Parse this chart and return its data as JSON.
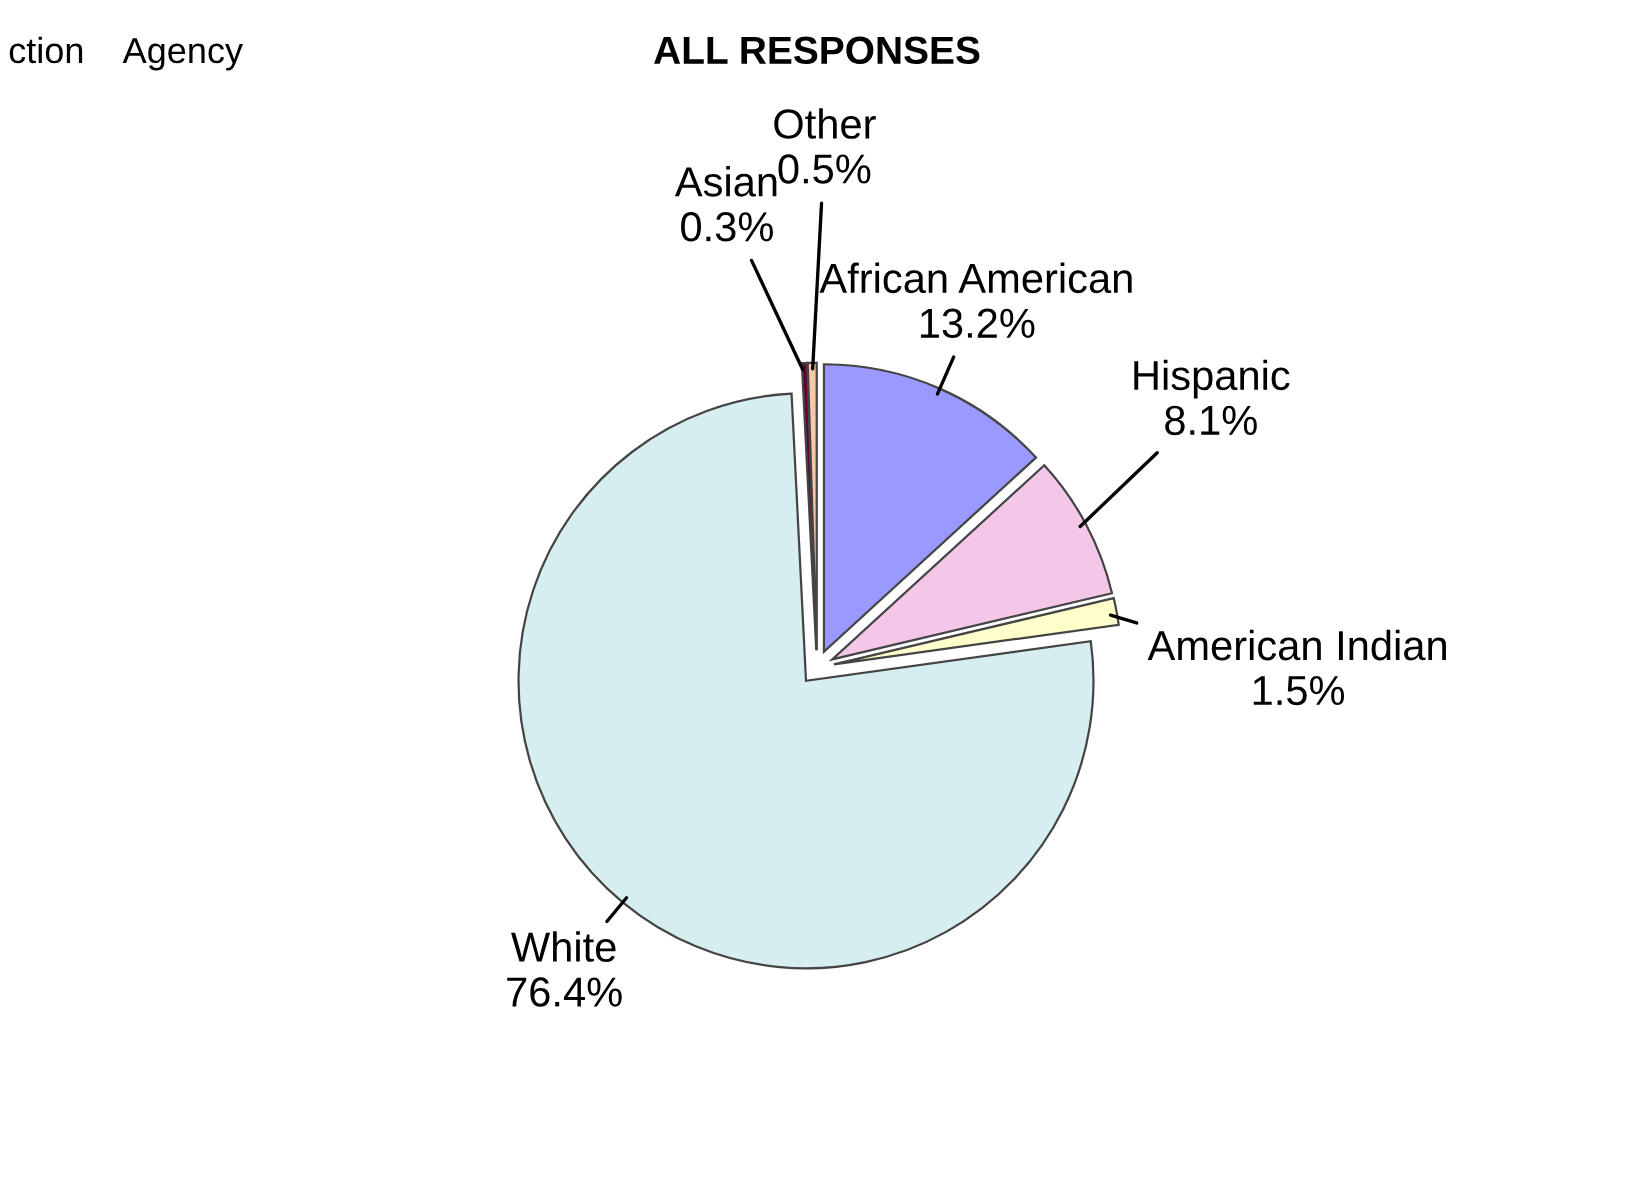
{
  "chart_data": {
    "type": "pie",
    "title": "ALL RESPONSES",
    "categories": [
      "African American",
      "Hispanic",
      "American Indian",
      "White",
      "Asian",
      "Other"
    ],
    "values": [
      13.2,
      8.1,
      1.5,
      76.4,
      0.3,
      0.5
    ],
    "value_labels": [
      "13.2%",
      "8.1%",
      "1.5%",
      "76.4%",
      "0.3%",
      "0.5%"
    ],
    "colors": [
      "#9999ff",
      "#f4c6e8",
      "#ffffcc",
      "#d6eef0",
      "#660033",
      "#f7c9a8"
    ],
    "annotations": [
      "ction    Agency"
    ]
  }
}
